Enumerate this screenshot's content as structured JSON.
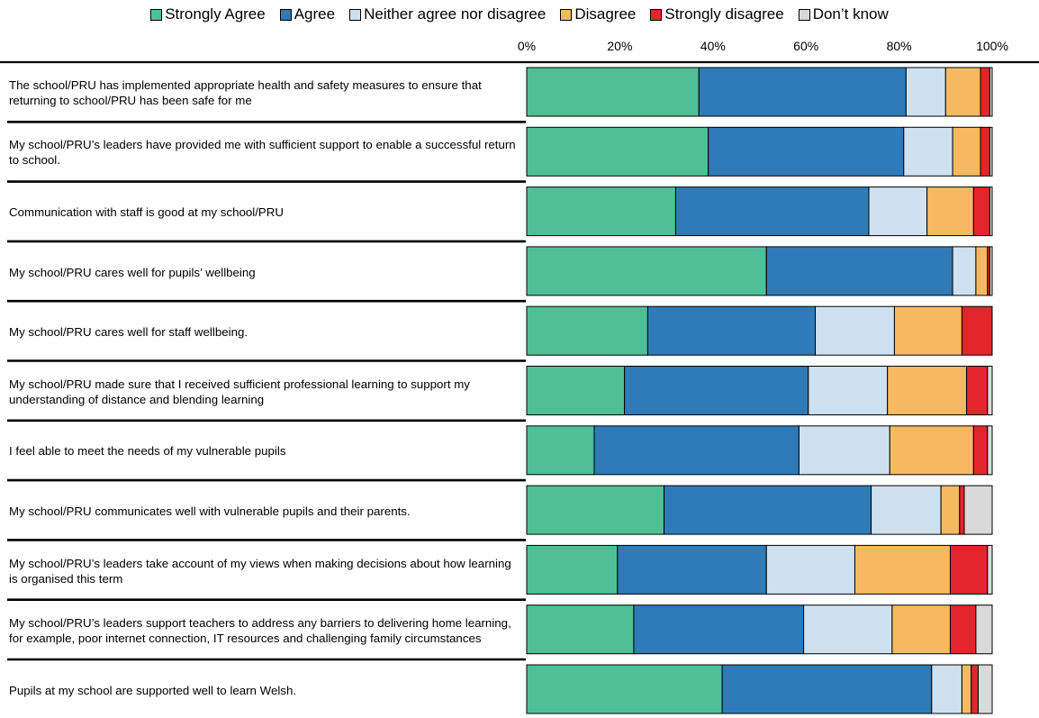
{
  "chart_data": {
    "type": "bar",
    "orientation": "horizontal",
    "stacked": "percent",
    "legend_position": "top",
    "grid": false,
    "xlim": [
      0,
      100
    ],
    "x_ticks": [
      "0%",
      "20%",
      "40%",
      "60%",
      "80%",
      "100%"
    ],
    "categories": [
      "The school/PRU has implemented appropriate health and safety measures to ensure that returning to school/PRU has been safe for me",
      "My school/PRU’s leaders have provided me with sufficient support to enable a successful return to school.",
      "Communication with staff is good at my school/PRU",
      "My school/PRU cares well for pupils’ wellbeing",
      "My school/PRU cares well for staff wellbeing.",
      "My school/PRU made sure that I received sufficient professional learning to support my understanding of distance and blending learning",
      "I feel able to meet the needs of my vulnerable pupils",
      "My school/PRU communicates well with vulnerable pupils and their parents.",
      "My school/PRU’s leaders take account of my views when making decisions about how learning is organised this term",
      "My school/PRU’s leaders support teachers to address any barriers to delivering home learning, for example, poor internet connection, IT resources and challenging family circumstances",
      "Pupils at my school are supported well to learn Welsh."
    ],
    "series": [
      {
        "name": "Strongly Agree",
        "color": "#4fc095",
        "values": [
          37,
          39,
          32,
          51.5,
          26,
          21,
          14.5,
          29.5,
          19.5,
          23,
          42
        ]
      },
      {
        "name": "Agree",
        "color": "#2e7bb8",
        "values": [
          44.5,
          42,
          41.5,
          40,
          36,
          39.5,
          44,
          44.5,
          32,
          36.5,
          45
        ]
      },
      {
        "name": "Neither agree nor disagree",
        "color": "#cde1f1",
        "values": [
          8.5,
          10.5,
          12.5,
          5,
          17,
          17,
          19.5,
          15,
          19,
          19,
          6.5
        ]
      },
      {
        "name": "Disagree",
        "color": "#f5b961",
        "values": [
          7.5,
          6,
          10,
          2.5,
          14.5,
          17,
          18,
          4,
          20.5,
          12.5,
          2
        ]
      },
      {
        "name": "Strongly disagree",
        "color": "#e3262c",
        "values": [
          2,
          2,
          3.5,
          0.5,
          6.5,
          4.5,
          3,
          1,
          8,
          5.5,
          1.5
        ]
      },
      {
        "name": "Don’t know",
        "color": "#d9d9d9",
        "values": [
          0.5,
          0.5,
          0.5,
          0.5,
          0,
          1,
          1,
          6,
          1,
          3.5,
          3
        ]
      }
    ]
  }
}
